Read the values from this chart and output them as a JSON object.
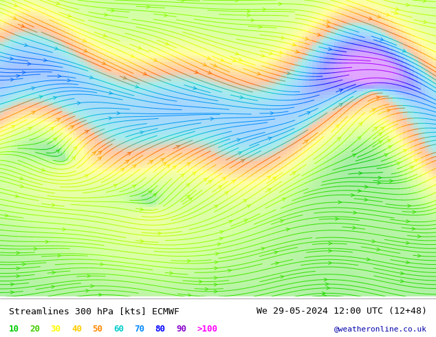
{
  "title_left": "Streamlines 300 hPa [kts] ECMWF",
  "title_right": "We 29-05-2024 12:00 UTC (12+48)",
  "legend_values": [
    "10",
    "20",
    "30",
    "40",
    "50",
    "60",
    "70",
    "80",
    "90",
    ">100"
  ],
  "legend_colors": [
    "#00ff00",
    "#00dd00",
    "#ffff00",
    "#ffaa00",
    "#ff6600",
    "#00ffff",
    "#0099ff",
    "#0000ff",
    "#aa00ff",
    "#ff00ff"
  ],
  "copyright": "@weatheronline.co.uk",
  "bg_color": "#ffffff",
  "plot_bg": "#e8ffe8",
  "speed_colors": {
    "very_low": "#00cc00",
    "low": "#88ff00",
    "low_mid": "#ccff00",
    "mid": "#00ffff",
    "mid_high": "#0088ff",
    "high": "#0000ff",
    "very_high": "#8800ff",
    "extreme": "#ff00ff"
  },
  "figsize": [
    6.34,
    4.9
  ],
  "dpi": 100
}
